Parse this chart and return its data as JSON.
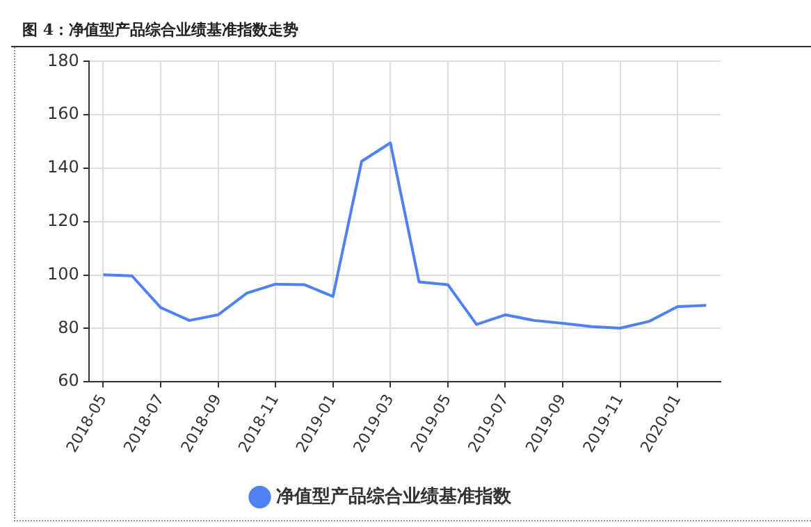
{
  "chart_data": {
    "type": "line",
    "title": "图 4：净值型产品综合业绩基准指数走势",
    "categories": [
      "2018-05",
      null,
      "2018-07",
      null,
      "2018-09",
      null,
      "2018-11",
      null,
      "2019-01",
      null,
      "2019-03",
      null,
      "2019-05",
      null,
      "2019-07",
      null,
      "2019-09",
      null,
      "2019-11",
      null,
      "2020-01",
      null
    ],
    "series": [
      {
        "name": "净值型产品综合业绩基准指数",
        "color": "#4f81f0",
        "values": [
          100.1,
          99.7,
          87.8,
          83.0,
          85.1,
          93.2,
          96.6,
          96.4,
          92.0,
          142.6,
          149.5,
          97.4,
          96.4,
          81.5,
          85.1,
          83.0,
          81.9,
          80.7,
          80.1,
          82.6,
          88.2,
          88.6
        ]
      }
    ],
    "ylim": [
      60,
      180
    ],
    "yticks": [
      60,
      80,
      100,
      120,
      140,
      160,
      180
    ],
    "grid": true,
    "legend": "bottom",
    "marker": "none",
    "line_style": "solid"
  }
}
